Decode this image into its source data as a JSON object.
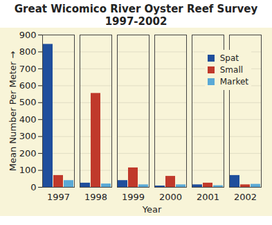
{
  "chart_data": {
    "type": "bar",
    "title": "Great Wicomico River Oyster Reef Survey",
    "subtitle": "1997-2002",
    "x_label": "Year",
    "y_label": "Mean Number Per Meter",
    "categories": [
      "1997",
      "1998",
      "1999",
      "2000",
      "2001",
      "2002"
    ],
    "series": [
      {
        "name": "Spat",
        "color": "#1f4e9c",
        "values": [
          845,
          25,
          40,
          8,
          15,
          70
        ]
      },
      {
        "name": "Small",
        "color": "#c0392b",
        "values": [
          70,
          555,
          115,
          65,
          25,
          15
        ]
      },
      {
        "name": "Market",
        "color": "#5aa9d6",
        "values": [
          40,
          20,
          15,
          15,
          10,
          18
        ]
      }
    ],
    "ylim": [
      0,
      900
    ],
    "yticks": [
      0,
      100,
      200,
      300,
      400,
      500,
      600,
      700,
      800,
      900
    ],
    "grid": true,
    "legend": "top-right"
  }
}
